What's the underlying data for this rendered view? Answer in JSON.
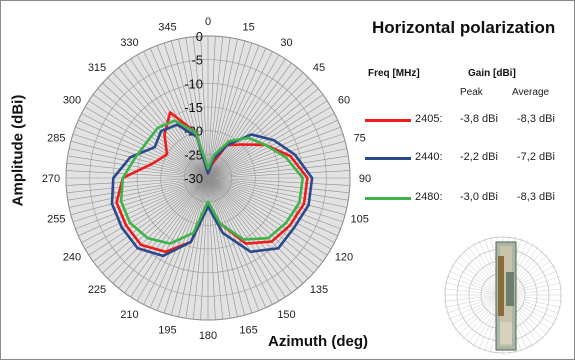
{
  "chart_data": {
    "type": "polar-line",
    "title": "Horizontal polarization",
    "xlabel": "Azimuth (deg)",
    "ylabel": "Amplitude (dBi)",
    "angle_unit": "deg",
    "angle_ticks": [
      0,
      15,
      30,
      45,
      60,
      75,
      90,
      105,
      120,
      135,
      150,
      165,
      180,
      195,
      210,
      225,
      240,
      255,
      270,
      285,
      300,
      315,
      330,
      345
    ],
    "radial_ticks": [
      0,
      -5,
      -10,
      -15,
      -20,
      -25,
      -30
    ],
    "rlim": [
      -30,
      0
    ],
    "grid": true,
    "legend_table": {
      "freq_header": "Freq [MHz]",
      "gain_header": "Gain [dBi]",
      "peak_header": "Peak",
      "average_header": "Average"
    },
    "angles": [
      0,
      15,
      30,
      45,
      60,
      75,
      90,
      105,
      120,
      135,
      150,
      165,
      180,
      195,
      210,
      225,
      240,
      255,
      270,
      285,
      300,
      315,
      330,
      345
    ],
    "series": [
      {
        "name": "2405:",
        "peak": "-3,8 dBi",
        "average": "-8,3 dBi",
        "color": "#ee1c1c",
        "values": [
          -29,
          -27,
          -22,
          -20,
          -16,
          -12,
          -9,
          -9,
          -10,
          -11,
          -14,
          -20,
          -24,
          -16,
          -12,
          -10,
          -10,
          -10,
          -12,
          -18,
          -20,
          -17,
          -14,
          -20
        ]
      },
      {
        "name": "2440:",
        "peak": "-2,2 dBi",
        "average": "-7,2 dBi",
        "color": "#2b4a8c",
        "values": [
          -29,
          -26,
          -22,
          -17,
          -14,
          -11,
          -8,
          -8,
          -9,
          -9,
          -12,
          -18,
          -24,
          -16,
          -11,
          -9,
          -9,
          -9,
          -10,
          -13,
          -17,
          -16,
          -17,
          -21
        ]
      },
      {
        "name": "2480:",
        "peak": "-3,0 dBi",
        "average": "-8,3 dBi",
        "color": "#3fb24a",
        "values": [
          -28,
          -25,
          -21,
          -18,
          -16,
          -13,
          -10,
          -10,
          -11,
          -12,
          -15,
          -20,
          -25,
          -18,
          -14,
          -12,
          -11,
          -11,
          -12,
          -14,
          -15,
          -15,
          -16,
          -20
        ]
      }
    ]
  }
}
